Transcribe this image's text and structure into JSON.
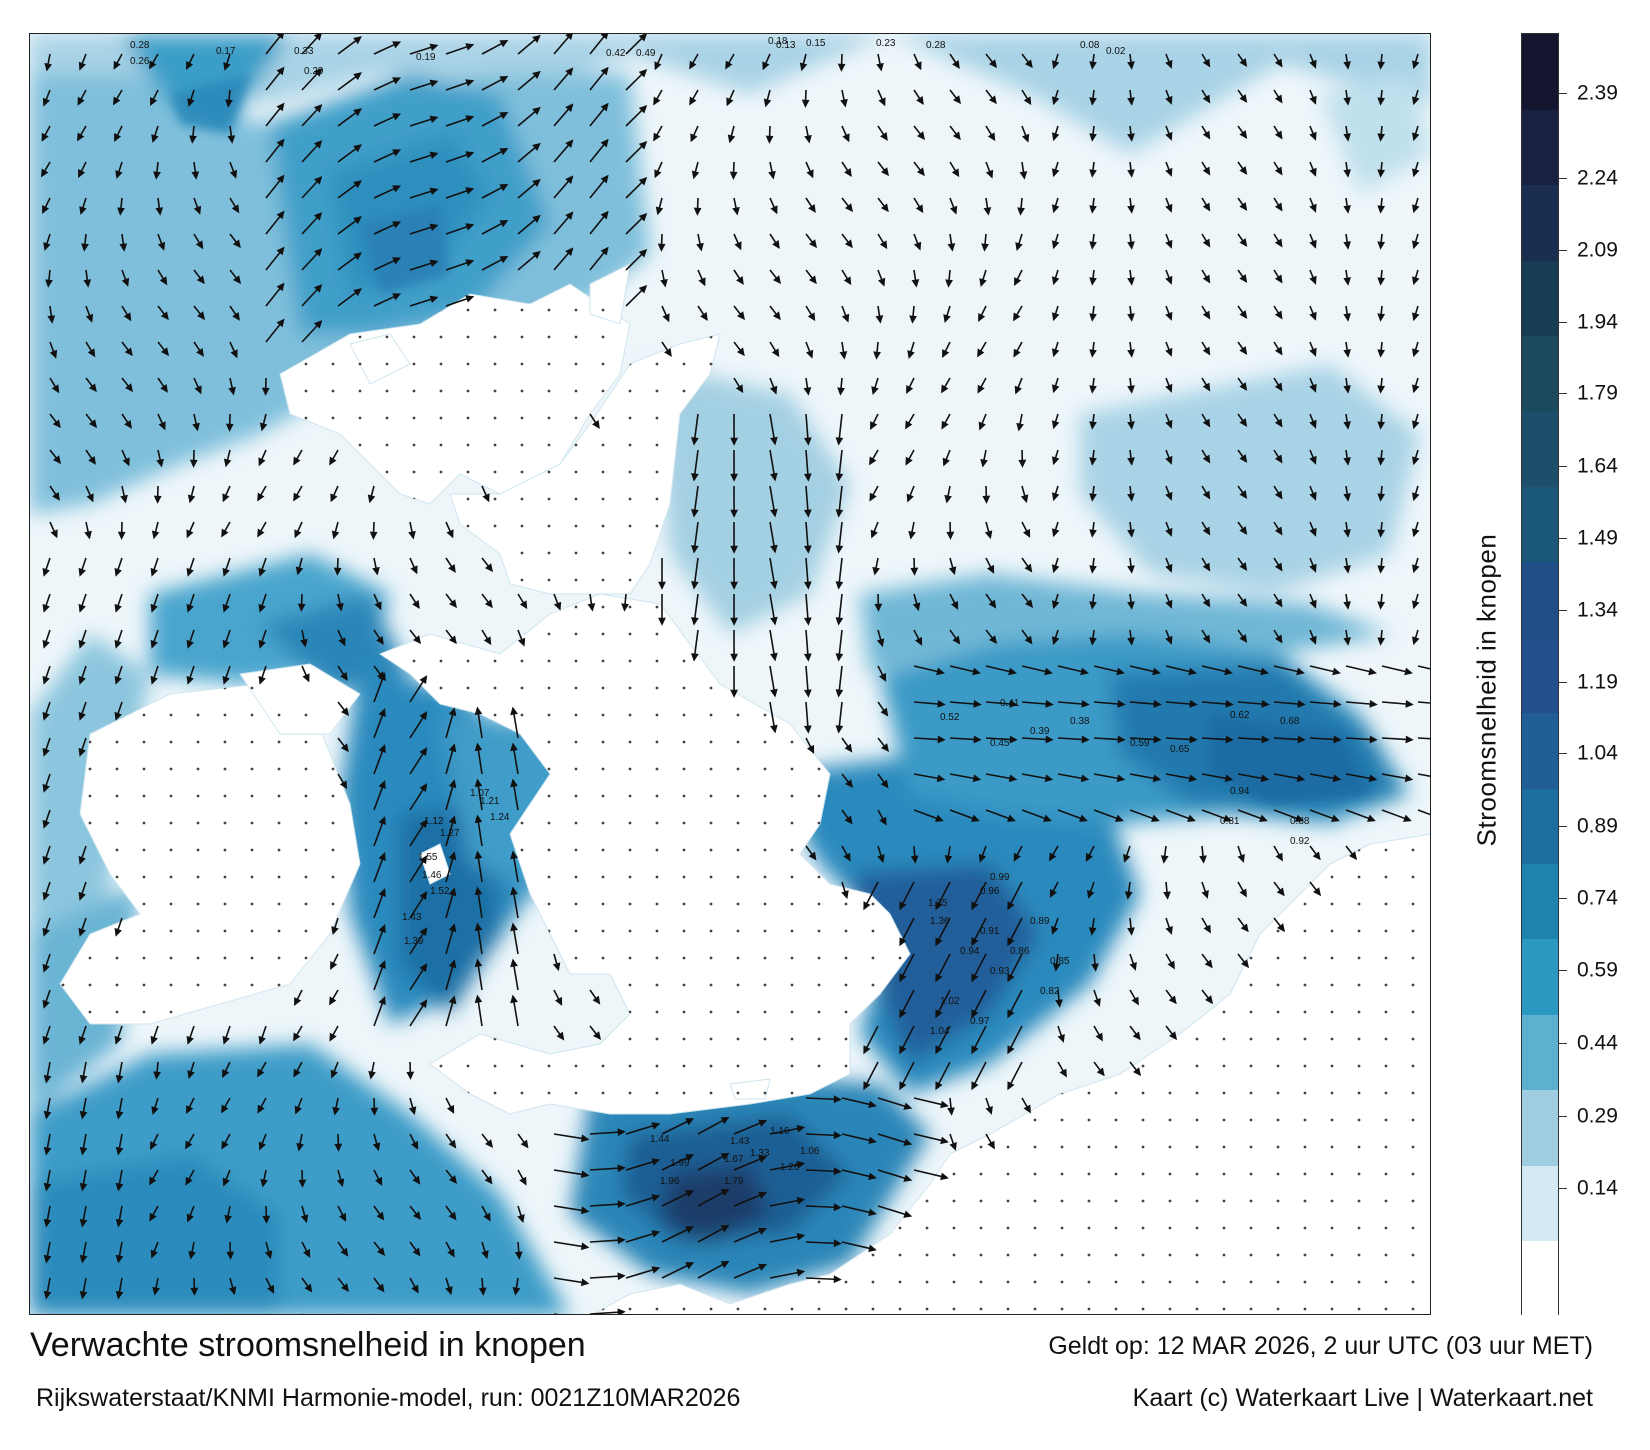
{
  "title": "Verwachte stroomsnelheid in knopen",
  "valid_time": "Geldt op: 12 MAR 2026, 2 uur UTC (03 uur MET)",
  "model_run": "Rijkswaterstaat/KNMI Harmonie-model, run: 0021Z10MAR2026",
  "credit": "Kaart (c) Waterkaart Live | Waterkaart.net",
  "colorbar": {
    "title": "Stroomsnelheid in knopen",
    "ticks": [
      "2.39",
      "2.24",
      "2.09",
      "1.94",
      "1.79",
      "1.64",
      "1.49",
      "1.34",
      "1.19",
      "1.04",
      "0.89",
      "0.74",
      "0.59",
      "0.44",
      "0.29",
      "0.14"
    ],
    "colors": [
      "#ffffff",
      "#d4e9f2",
      "#9fcde0",
      "#5cb1d0",
      "#2b98c2",
      "#1d84b0",
      "#1a6fa0",
      "#215d96",
      "#234f8d",
      "#1f4f86",
      "#1b5878",
      "#1d4f6a",
      "#1a4a5c",
      "#193c55",
      "#1a2f4f",
      "#18213f",
      "#141630"
    ]
  },
  "sample_labels": {
    "north": [
      "0.28",
      "0.26",
      "0.17",
      "0.33",
      "0.29",
      "0.19",
      "0.42",
      "0.49",
      "0.18",
      "0.13",
      "0.15",
      "0.23",
      "0.28",
      "0.08",
      "0.02"
    ],
    "channel": [
      "1.99",
      "1.96",
      "1.67",
      "1.79",
      "1.44",
      "1.43",
      "1.33",
      "1.26",
      "1.06",
      "1.16"
    ],
    "irish_sea": [
      "1.12",
      "1.27",
      "1.21",
      "1.24",
      "1.07",
      "1.55",
      "1.46",
      "1.52",
      "1.43",
      "1.39"
    ],
    "north_sea": [
      "0.52",
      "0.41",
      "0.45",
      "0.39",
      "0.38",
      "0.59",
      "0.65",
      "0.62",
      "0.68",
      "0.81",
      "0.94",
      "0.88",
      "0.92",
      "0.99",
      "1.35",
      "1.36",
      "0.96"
    ],
    "dover": [
      "1.02",
      "1.04",
      "0.97",
      "0.93",
      "0.86",
      "0.94",
      "0.91",
      "0.89",
      "0.85",
      "0.82"
    ]
  }
}
